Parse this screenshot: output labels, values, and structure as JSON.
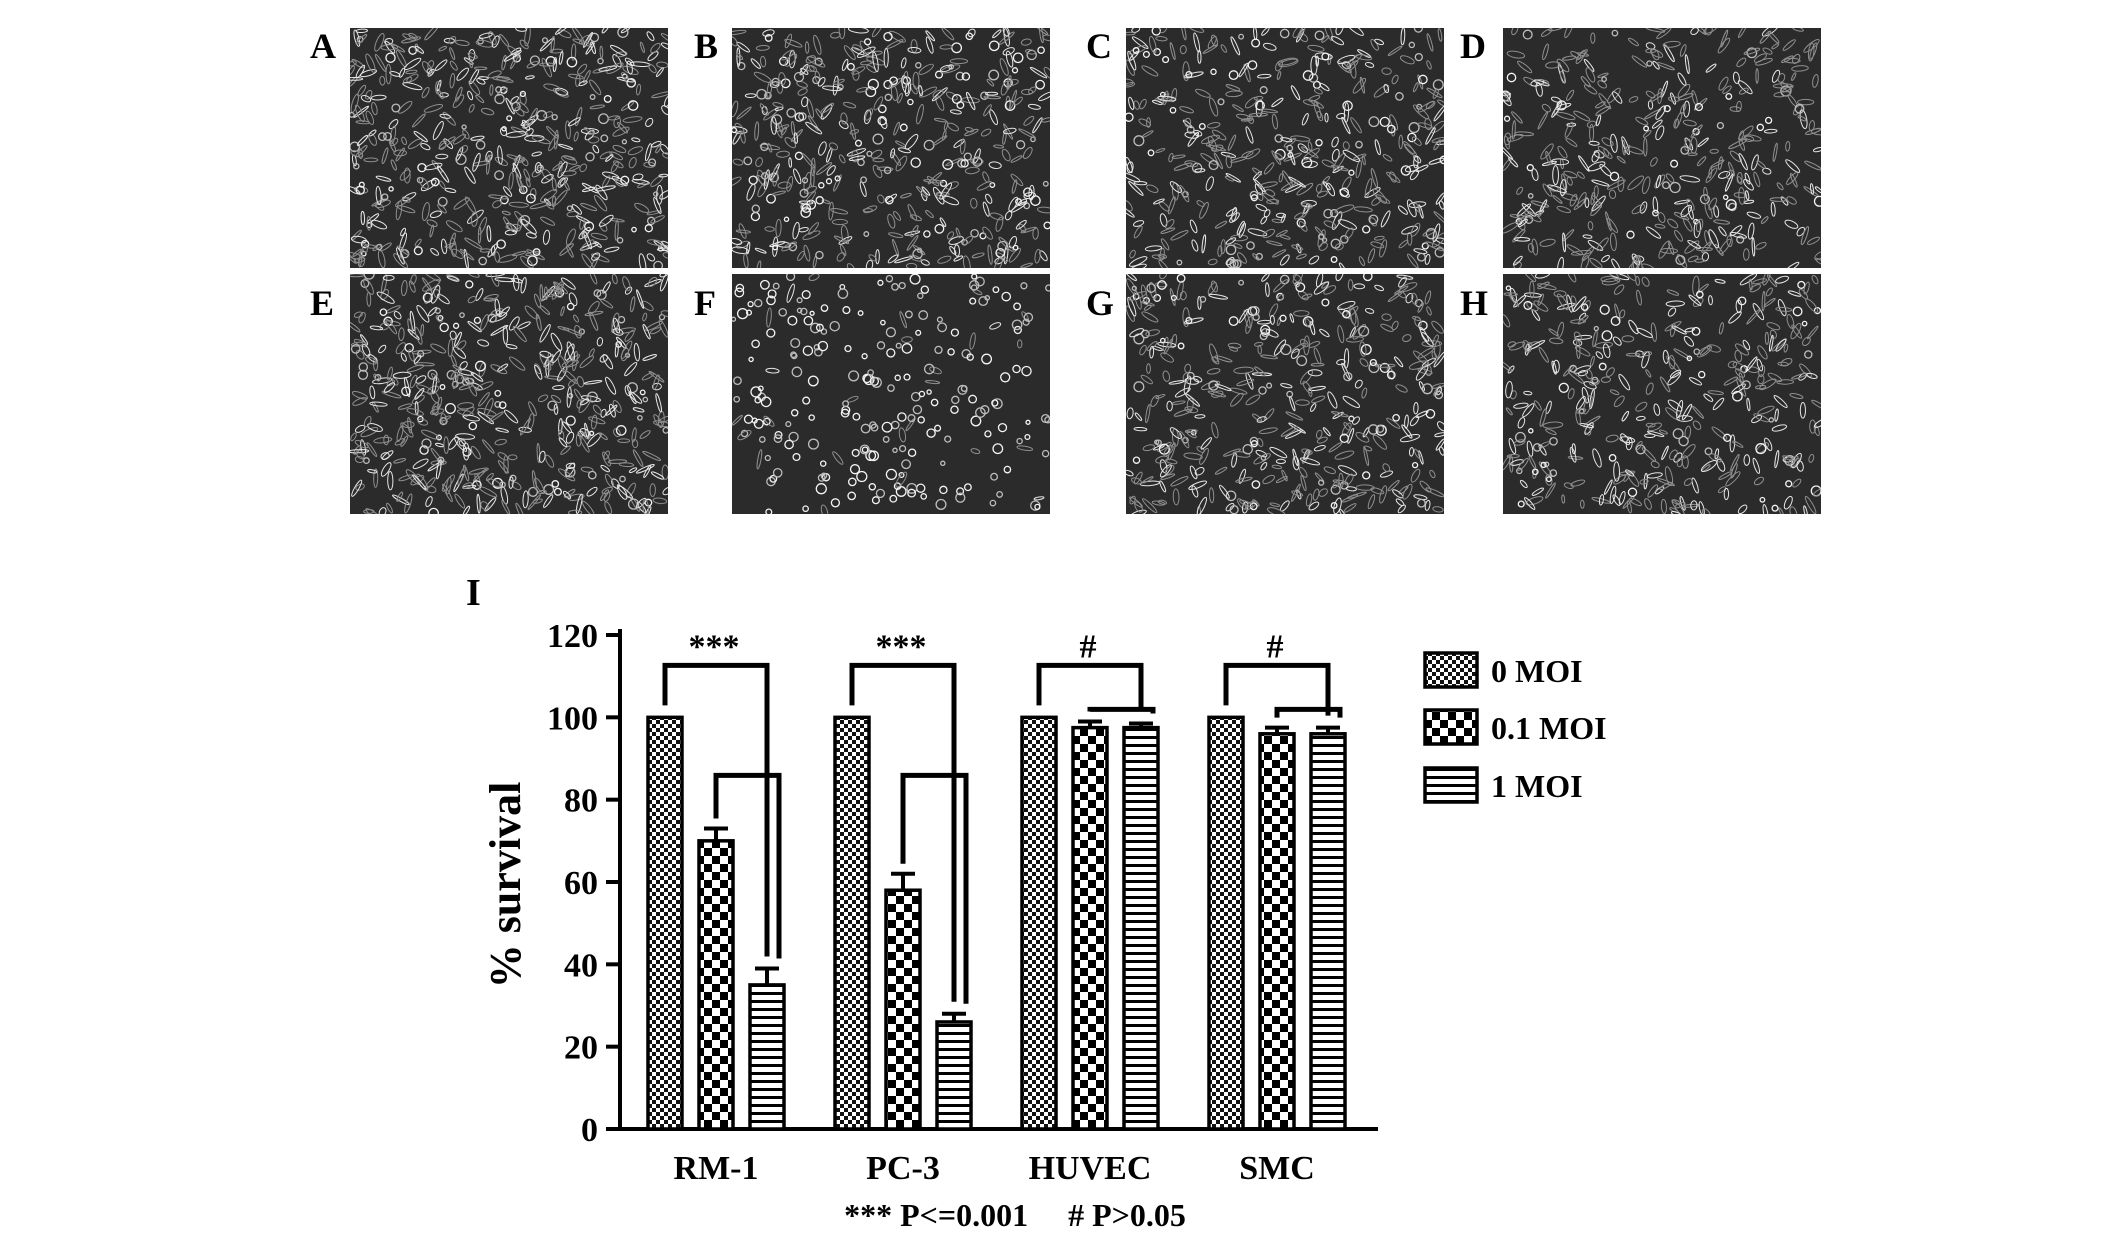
{
  "panels": [
    {
      "label": "A",
      "density": 0.95,
      "rounded": 0.15
    },
    {
      "label": "B",
      "density": 0.85,
      "rounded": 0.25
    },
    {
      "label": "C",
      "density": 0.8,
      "rounded": 0.2
    },
    {
      "label": "D",
      "density": 0.75,
      "rounded": 0.1
    },
    {
      "label": "E",
      "density": 0.95,
      "rounded": 0.15
    },
    {
      "label": "F",
      "density": 0.45,
      "rounded": 0.85
    },
    {
      "label": "G",
      "density": 0.8,
      "rounded": 0.2
    },
    {
      "label": "H",
      "density": 0.75,
      "rounded": 0.12
    }
  ],
  "chart_panel_label": "I",
  "footnote": "*** P<=0.001     # P>0.05",
  "chart_data": {
    "type": "bar",
    "ylabel": "% survival",
    "xlabel": "",
    "ylim": [
      0,
      120
    ],
    "yticks": [
      0,
      20,
      40,
      60,
      80,
      100,
      120
    ],
    "categories": [
      "RM-1",
      "PC-3",
      "HUVEC",
      "SMC"
    ],
    "series": [
      {
        "name": "0 MOI",
        "pattern": "fine-check",
        "values": [
          100,
          100,
          100,
          100
        ],
        "errors": [
          0,
          0,
          0,
          0
        ]
      },
      {
        "name": "0.1 MOI",
        "pattern": "coarse-check",
        "values": [
          70,
          58,
          97.5,
          96
        ],
        "errors": [
          3,
          4,
          1.5,
          1.5
        ]
      },
      {
        "name": "1 MOI",
        "pattern": "horizontal-lines",
        "values": [
          35,
          26,
          97.5,
          96
        ],
        "errors": [
          4,
          2,
          1,
          1.5
        ]
      }
    ],
    "significance": [
      {
        "category": "RM-1",
        "mark": "***"
      },
      {
        "category": "PC-3",
        "mark": "***"
      },
      {
        "category": "HUVEC",
        "mark": "#"
      },
      {
        "category": "SMC",
        "mark": "#"
      }
    ],
    "legend_position": "right"
  }
}
